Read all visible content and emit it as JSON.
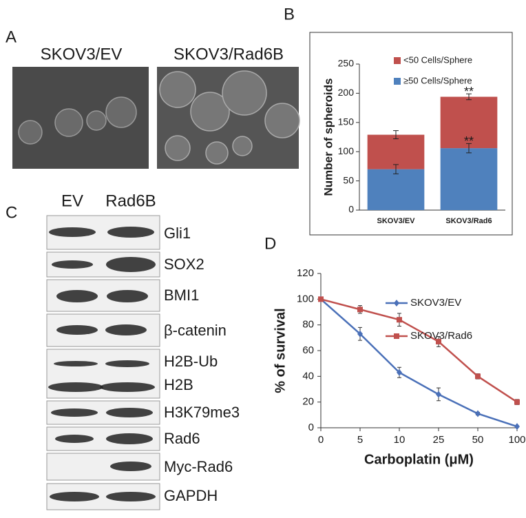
{
  "panel_labels": [
    "A",
    "B",
    "C",
    "D"
  ],
  "panel_a": {
    "labels": [
      "SKOV3/EV",
      "SKOV3/Rad6B"
    ]
  },
  "panel_c": {
    "columns": [
      "EV",
      "Rad6B"
    ],
    "bands": [
      "Gli1",
      "SOX2",
      "BMI1",
      "β-catenin",
      "H2B-Ub",
      "H2B",
      "H3K79me3",
      "Rad6",
      "Myc-Rad6",
      "GAPDH"
    ]
  },
  "chart_data": [
    {
      "type": "stacked-bar",
      "y_label": "Number of spheroids",
      "categories": [
        "SKOV3/EV",
        "SKOV3/Rad6"
      ],
      "series": [
        {
          "name": "≥50 Cells/Sphere",
          "color": "#4f81bd",
          "values": [
            70,
            106
          ],
          "errors": [
            8,
            8
          ]
        },
        {
          "name": "<50 Cells/Sphere",
          "color": "#c0504d",
          "values": [
            59,
            88
          ],
          "errors": [
            7,
            5
          ]
        }
      ],
      "annotations": [
        "**",
        "**"
      ],
      "ylim": [
        0,
        250
      ],
      "yticks": [
        0,
        50,
        100,
        150,
        200,
        250
      ]
    },
    {
      "type": "line",
      "x_label": "Carboplatin (μM)",
      "y_label": "% of survival",
      "categories": [
        "0",
        "5",
        "10",
        "25",
        "50",
        "100"
      ],
      "series": [
        {
          "name": "SKOV3/EV",
          "color": "#4a70b8",
          "marker": "diamond",
          "values": [
            100,
            73,
            43,
            26,
            11,
            1
          ],
          "errors": [
            0,
            5,
            4,
            5,
            1,
            0.5
          ]
        },
        {
          "name": "SKOV3/Rad6",
          "color": "#c0504d",
          "marker": "square",
          "values": [
            100,
            92,
            84,
            67,
            40,
            20
          ],
          "errors": [
            0,
            3,
            5,
            4,
            2,
            2
          ]
        }
      ],
      "ylim": [
        0,
        120
      ],
      "yticks": [
        0,
        20,
        40,
        60,
        80,
        100,
        120
      ]
    }
  ]
}
